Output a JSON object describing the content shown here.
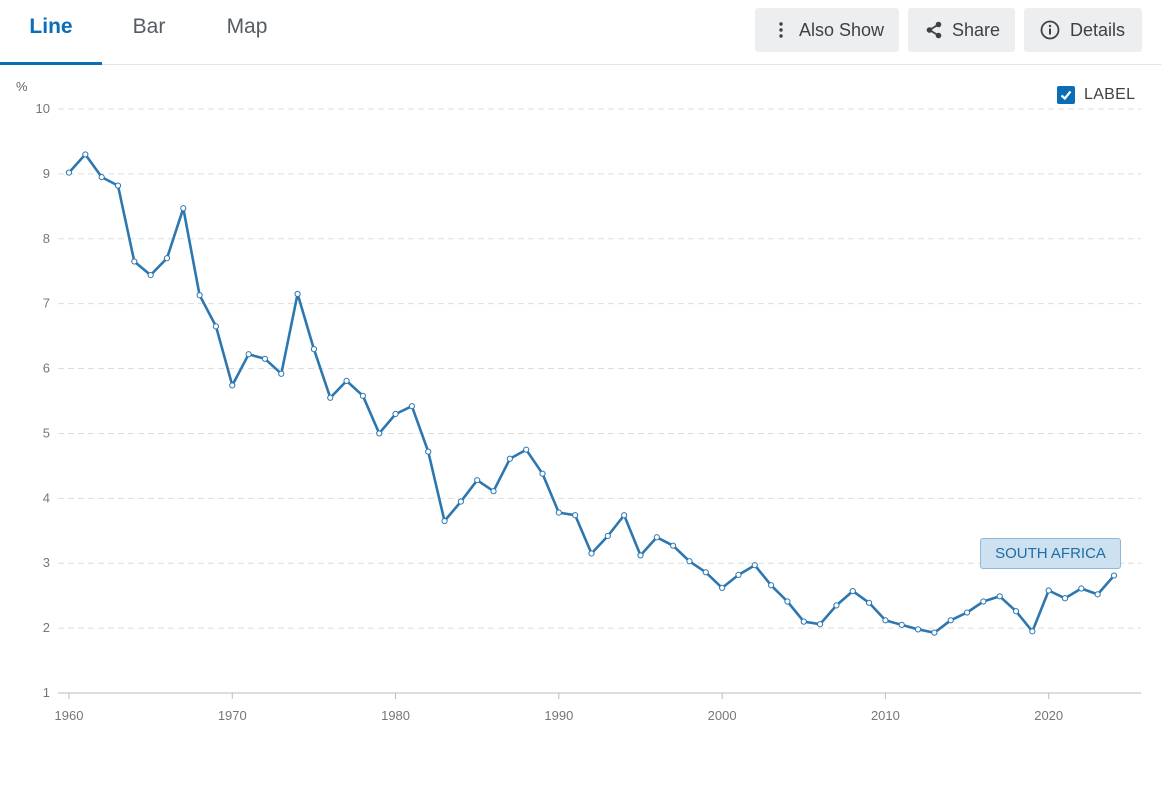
{
  "tabs": [
    {
      "label": "Line",
      "active": true
    },
    {
      "label": "Bar",
      "active": false
    },
    {
      "label": "Map",
      "active": false
    }
  ],
  "toolbar": {
    "also_show": "Also Show",
    "share": "Share",
    "details": "Details"
  },
  "label_toggle": {
    "text": "LABEL",
    "checked": true
  },
  "colors": {
    "accent": "#0a6db6",
    "series": "#2d77b0",
    "grid": "#dddddd"
  },
  "chart_data": {
    "type": "line",
    "ylabel": "%",
    "ylim": [
      1,
      10
    ],
    "xlim": [
      1960,
      2024
    ],
    "y_ticks": [
      "1",
      "2",
      "3",
      "4",
      "5",
      "6",
      "7",
      "8",
      "9",
      "10"
    ],
    "x_ticks": [
      "1960",
      "1970",
      "1980",
      "1990",
      "2000",
      "2010",
      "2020"
    ],
    "grid": "horizontal dashed",
    "series": [
      {
        "name": "SOUTH AFRICA",
        "x": [
          1960,
          1961,
          1962,
          1963,
          1964,
          1965,
          1966,
          1967,
          1968,
          1969,
          1970,
          1971,
          1972,
          1973,
          1974,
          1975,
          1976,
          1977,
          1978,
          1979,
          1980,
          1981,
          1982,
          1983,
          1984,
          1985,
          1986,
          1987,
          1988,
          1989,
          1990,
          1991,
          1992,
          1993,
          1994,
          1995,
          1996,
          1997,
          1998,
          1999,
          2000,
          2001,
          2002,
          2003,
          2004,
          2005,
          2006,
          2007,
          2008,
          2009,
          2010,
          2011,
          2012,
          2013,
          2014,
          2015,
          2016,
          2017,
          2018,
          2019,
          2020,
          2021,
          2022,
          2023,
          2024
        ],
        "values": [
          9.02,
          9.3,
          8.95,
          8.82,
          7.65,
          7.44,
          7.7,
          8.47,
          7.13,
          6.65,
          5.74,
          6.22,
          6.15,
          5.92,
          7.15,
          6.3,
          5.55,
          5.81,
          5.58,
          5.0,
          5.3,
          5.42,
          4.72,
          3.65,
          3.95,
          4.28,
          4.11,
          4.61,
          4.75,
          4.38,
          3.78,
          3.74,
          3.15,
          3.42,
          3.74,
          3.12,
          3.4,
          3.27,
          3.03,
          2.86,
          2.62,
          2.82,
          2.97,
          2.66,
          2.41,
          2.1,
          2.06,
          2.35,
          2.57,
          2.39,
          2.12,
          2.05,
          1.98,
          1.93,
          2.12,
          2.24,
          2.41,
          2.49,
          2.26,
          1.95,
          2.58,
          2.46,
          2.61,
          2.52,
          2.81
        ]
      }
    ]
  }
}
